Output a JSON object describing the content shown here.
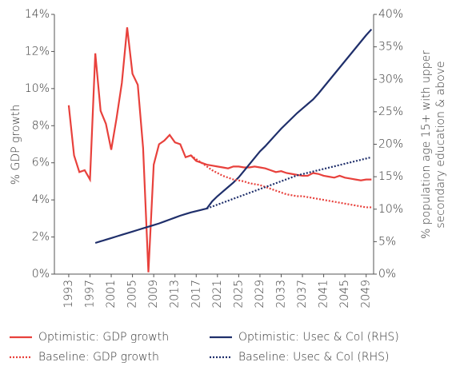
{
  "chart_data": {
    "type": "line",
    "ylabel": "% GDP growth",
    "y2label": [
      "% population age 15+ with upper",
      "secondary education & above"
    ],
    "x": [
      1993,
      1994,
      1995,
      1996,
      1997,
      1998,
      1999,
      2000,
      2001,
      2002,
      2003,
      2004,
      2005,
      2006,
      2007,
      2008,
      2009,
      2010,
      2011,
      2012,
      2013,
      2014,
      2015,
      2016,
      2017,
      2018,
      2019,
      2020,
      2021,
      2022,
      2023,
      2024,
      2025,
      2026,
      2027,
      2028,
      2029,
      2030,
      2031,
      2032,
      2033,
      2034,
      2035,
      2036,
      2037,
      2038,
      2039,
      2040,
      2041,
      2042,
      2043,
      2044,
      2045,
      2046,
      2047,
      2048,
      2049,
      2050
    ],
    "xlim": [
      1990.3,
      2050.4
    ],
    "xticks": [
      1993,
      1997,
      2001,
      2005,
      2009,
      2013,
      2017,
      2021,
      2025,
      2029,
      2033,
      2037,
      2041,
      2045,
      2049
    ],
    "ylim": [
      0,
      14
    ],
    "yticks": [
      {
        "value": 0,
        "label": "0%"
      },
      {
        "value": 2,
        "label": "2%"
      },
      {
        "value": 4,
        "label": "4%"
      },
      {
        "value": 6,
        "label": "6%"
      },
      {
        "value": 8,
        "label": "8%"
      },
      {
        "value": 10,
        "label": "10%"
      },
      {
        "value": 12,
        "label": "12%"
      },
      {
        "value": 14,
        "label": "14%"
      }
    ],
    "y2lim": [
      0,
      40
    ],
    "y2ticks": [
      {
        "value": 0,
        "label": "0%"
      },
      {
        "value": 5,
        "label": "5%"
      },
      {
        "value": 10,
        "label": "10%"
      },
      {
        "value": 15,
        "label": "15%"
      },
      {
        "value": 20,
        "label": "20%"
      },
      {
        "value": 25,
        "label": "25%"
      },
      {
        "value": 30,
        "label": "30%"
      },
      {
        "value": 35,
        "label": "35%"
      },
      {
        "value": 40,
        "label": "40%"
      }
    ],
    "legend": "bottom",
    "series": [
      {
        "name": "Optimistic: GDP growth",
        "color": "#e8413c",
        "linestyle": "solid",
        "values": [
          9.1,
          6.4,
          5.5,
          5.6,
          5.1,
          11.9,
          8.8,
          8.1,
          6.7,
          8.4,
          10.3,
          13.3,
          10.8,
          10.2,
          6.8,
          0.1,
          5.9,
          7.0,
          7.2,
          7.5,
          7.1,
          7.0,
          6.3,
          6.4,
          6.1,
          6.0,
          5.9,
          5.85,
          5.8,
          5.75,
          5.7,
          5.8,
          5.8,
          5.75,
          5.75,
          5.8,
          5.75,
          5.7,
          5.6,
          5.5,
          5.55,
          5.45,
          5.4,
          5.35,
          5.3,
          5.3,
          5.45,
          5.4,
          5.3,
          5.25,
          5.2,
          5.3,
          5.2,
          5.15,
          5.1,
          5.05,
          5.1,
          5.1
        ]
      },
      {
        "name": "Optimistic: Usec & Col (RHS)",
        "color": "#1f2f6b",
        "linestyle": "solid",
        "axis": "y2",
        "values": [
          null,
          null,
          null,
          null,
          null,
          4.8,
          5.05,
          5.3,
          5.55,
          5.8,
          6.05,
          6.3,
          6.55,
          6.8,
          7.05,
          7.3,
          7.55,
          7.8,
          8.1,
          8.4,
          8.7,
          9.0,
          9.25,
          9.5,
          9.7,
          9.9,
          10.1,
          11.2,
          12.0,
          12.7,
          13.4,
          14.1,
          14.9,
          15.9,
          16.9,
          17.9,
          18.9,
          19.7,
          20.6,
          21.5,
          22.4,
          23.2,
          24.0,
          24.8,
          25.5,
          26.2,
          26.9,
          27.8,
          28.8,
          29.8,
          30.8,
          31.8,
          32.8,
          33.8,
          34.8,
          35.8,
          36.8,
          37.7
        ]
      },
      {
        "name": "Baseline: GDP growth",
        "color": "#e8413c",
        "linestyle": "dotted",
        "values": [
          null,
          null,
          null,
          null,
          null,
          null,
          null,
          null,
          null,
          null,
          null,
          null,
          null,
          null,
          null,
          null,
          null,
          null,
          null,
          null,
          null,
          null,
          null,
          6.4,
          6.2,
          6.0,
          5.8,
          5.6,
          5.45,
          5.3,
          5.2,
          5.1,
          5.05,
          5.0,
          4.9,
          4.85,
          4.8,
          4.7,
          4.6,
          4.5,
          4.4,
          4.3,
          4.25,
          4.2,
          4.2,
          4.15,
          4.1,
          4.05,
          4.0,
          3.95,
          3.9,
          3.85,
          3.8,
          3.75,
          3.7,
          3.65,
          3.6,
          3.6
        ]
      },
      {
        "name": "Baseline: Usec & Col (RHS)",
        "color": "#1f2f6b",
        "linestyle": "dotted",
        "axis": "y2",
        "values": [
          null,
          null,
          null,
          null,
          null,
          null,
          null,
          null,
          null,
          null,
          null,
          null,
          null,
          null,
          null,
          null,
          null,
          null,
          null,
          null,
          null,
          null,
          null,
          null,
          null,
          null,
          10.1,
          10.4,
          10.7,
          11.0,
          11.3,
          11.6,
          11.9,
          12.2,
          12.5,
          12.8,
          13.1,
          13.4,
          13.7,
          14.0,
          14.3,
          14.6,
          14.9,
          15.2,
          15.4,
          15.6,
          15.8,
          16.0,
          16.2,
          16.4,
          16.6,
          16.8,
          17.0,
          17.2,
          17.4,
          17.6,
          17.8,
          18.0
        ]
      }
    ]
  }
}
